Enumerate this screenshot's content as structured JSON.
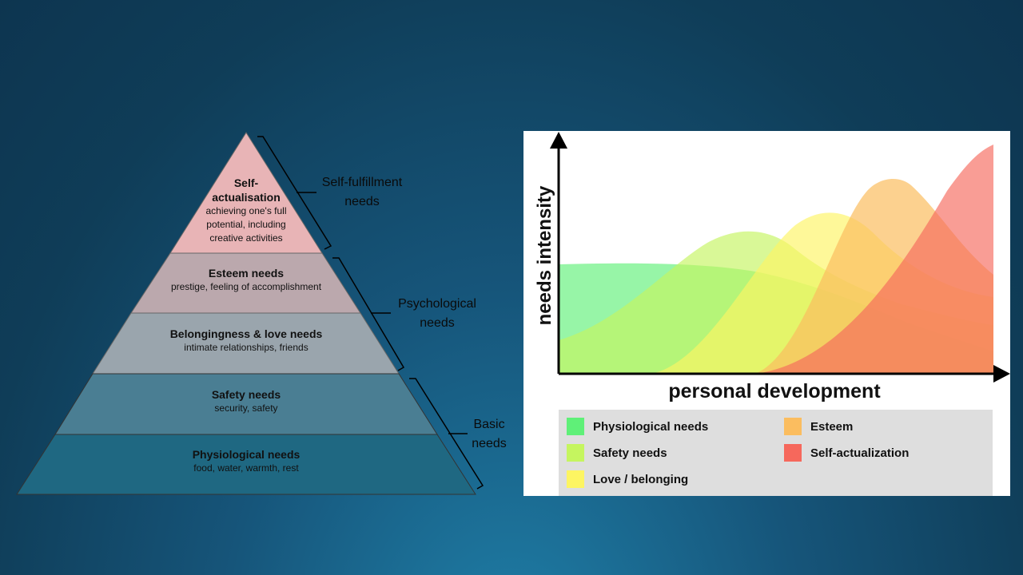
{
  "pyramid": {
    "tiers": [
      {
        "title": "Self-\nactualisation",
        "subtitle": "achieving one's full\npotential, including\ncreative activities",
        "color": "#e8b4b6"
      },
      {
        "title": "Esteem needs",
        "subtitle": "prestige, feeling of accomplishment",
        "color": "#bba8ad"
      },
      {
        "title": "Belongingness & love needs",
        "subtitle": "intimate relationships, friends",
        "color": "#9aa5ad"
      },
      {
        "title": "Safety needs",
        "subtitle": "security, safety",
        "color": "#4a7e93"
      },
      {
        "title": "Physiological needs",
        "subtitle": "food, water, warmth, rest",
        "color": "#1f6882"
      }
    ],
    "groups": [
      {
        "label": "Self-fulfillment\nneeds"
      },
      {
        "label": "Psychological\nneeds"
      },
      {
        "label": "Basic\nneeds"
      }
    ]
  },
  "chart": {
    "xlabel": "personal development",
    "ylabel": "needs intensity",
    "legend": [
      {
        "label": "Physiological needs",
        "color": "#5ff078"
      },
      {
        "label": "Esteem",
        "color": "#fbbd5f"
      },
      {
        "label": "Safety needs",
        "color": "#c5f55f"
      },
      {
        "label": "Self-actualization",
        "color": "#f6685c"
      },
      {
        "label": "Love / belonging",
        "color": "#fdf562"
      }
    ]
  }
}
